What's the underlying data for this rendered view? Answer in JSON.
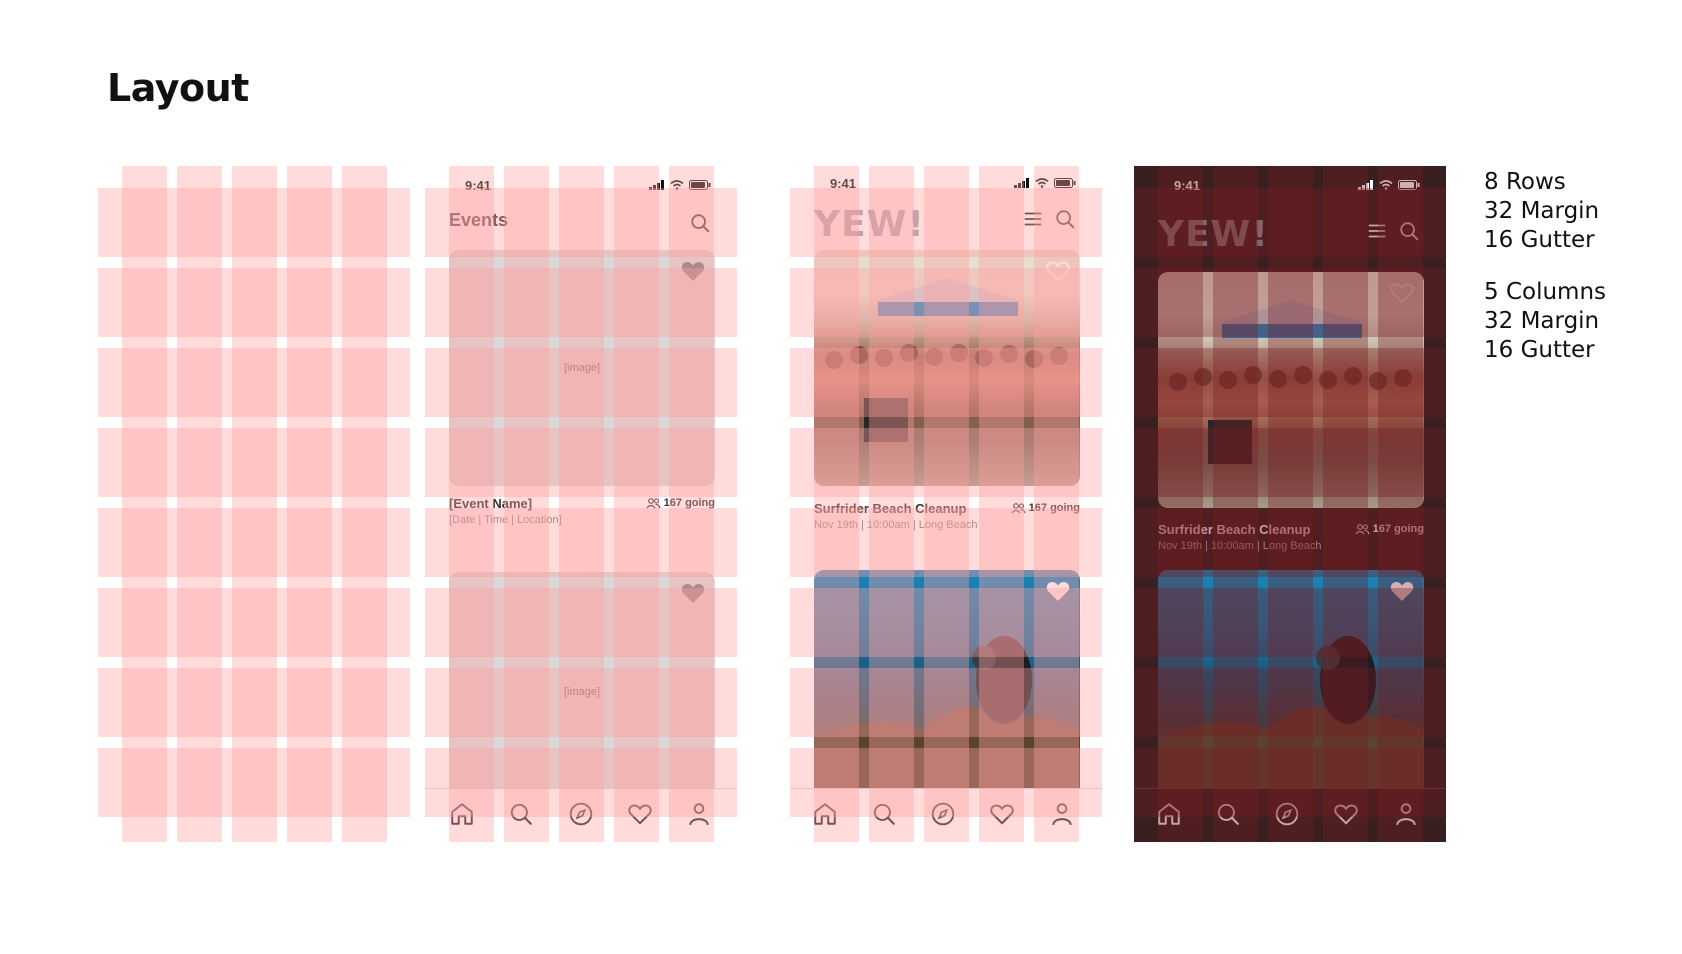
{
  "page": {
    "title": "Layout",
    "notes": {
      "rows": "8 Rows",
      "rows_margin": "32 Margin",
      "rows_gutter": "16 Gutter",
      "columns": "5 Columns",
      "columns_margin": "32 Margin",
      "columns_gutter": "16 Gutter"
    }
  },
  "wireframe": {
    "time": "9:41",
    "header_title": "Events",
    "card1": {
      "image_label": "[image]",
      "name": "[Event Name]",
      "sub": "[Date | Time | Location]",
      "going": "167 going"
    },
    "card2": {
      "image_label": "[image]"
    }
  },
  "light": {
    "time": "9:41",
    "logo": "YEW!",
    "card1": {
      "name": "Surfrider Beach Cleanup",
      "sub": "Nov 19th | 10:00am | Long Beach",
      "going": "167 going"
    }
  },
  "dark": {
    "time": "9:41",
    "logo": "YEW!",
    "card1": {
      "name": "Surfrider Beach Cleanup",
      "sub": "Nov 19th | 10:00am | Long Beach",
      "going": "167 going"
    }
  },
  "icons": [
    "home-icon",
    "search-icon",
    "compass-icon",
    "heart-icon",
    "profile-icon",
    "menu-icon",
    "signal-icon",
    "wifi-icon",
    "battery-icon",
    "people-icon"
  ],
  "colors": {
    "grid_overlay": "#ffa0a0",
    "dark_bg": "#3a1f21",
    "placeholder": "#d9d9d9"
  }
}
